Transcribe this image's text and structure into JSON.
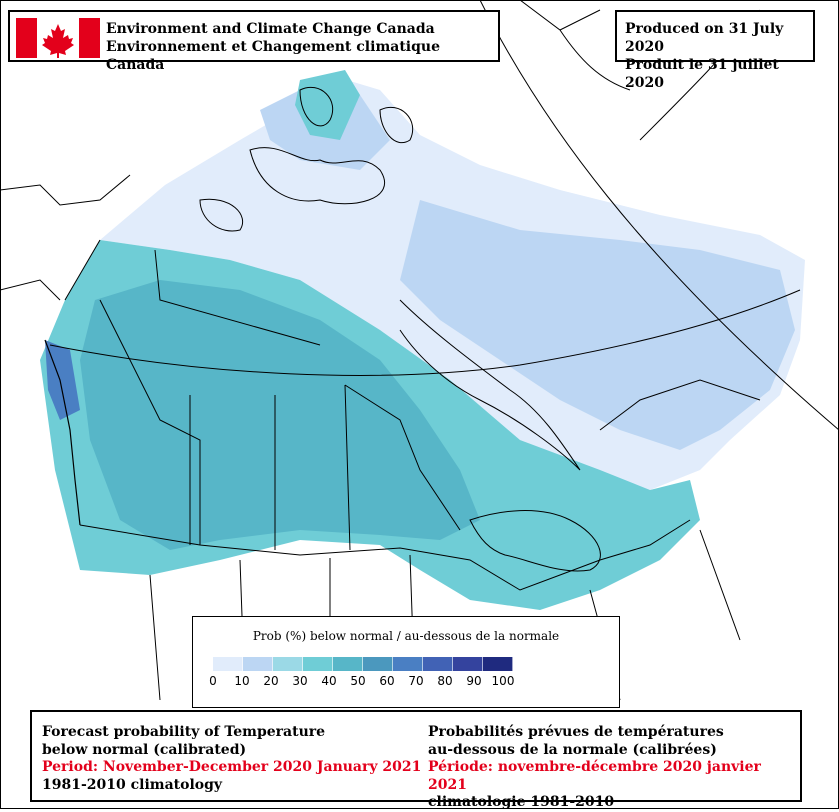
{
  "header": {
    "agency_en": "Environment and Climate Change Canada",
    "agency_fr": "Environnement et Changement climatique Canada",
    "produced_en": "Produced on 31 July 2020",
    "produced_fr": "Produit le 31 juillet 2020"
  },
  "legend": {
    "title": "Prob (%) below normal / au-dessous de la normale",
    "ticks": [
      "0",
      "10",
      "20",
      "30",
      "40",
      "50",
      "60",
      "70",
      "80",
      "90",
      "100"
    ],
    "colors": [
      "#e1ecfb",
      "#bcd6f3",
      "#9bd9e6",
      "#6fcdd6",
      "#57b6c8",
      "#4b98be",
      "#4a7fc3",
      "#4162b5",
      "#34439e",
      "#1f2a7f"
    ]
  },
  "footer": {
    "en_line1": "Forecast probability of Temperature",
    "en_line2": "below normal (calibrated)",
    "en_period": "Period: November-December 2020 January 2021",
    "en_clim": "1981-2010 climatology",
    "fr_line1": "Probabilités prévues de températures",
    "fr_line2": "au-dessous de la normale (calibrées)",
    "fr_period": "Période: novembre-décembre 2020 janvier 2021",
    "fr_clim": "climatologie 1981-2010"
  },
  "colors": {
    "flag_red": "#e3001b",
    "period_red": "#e3001b"
  }
}
